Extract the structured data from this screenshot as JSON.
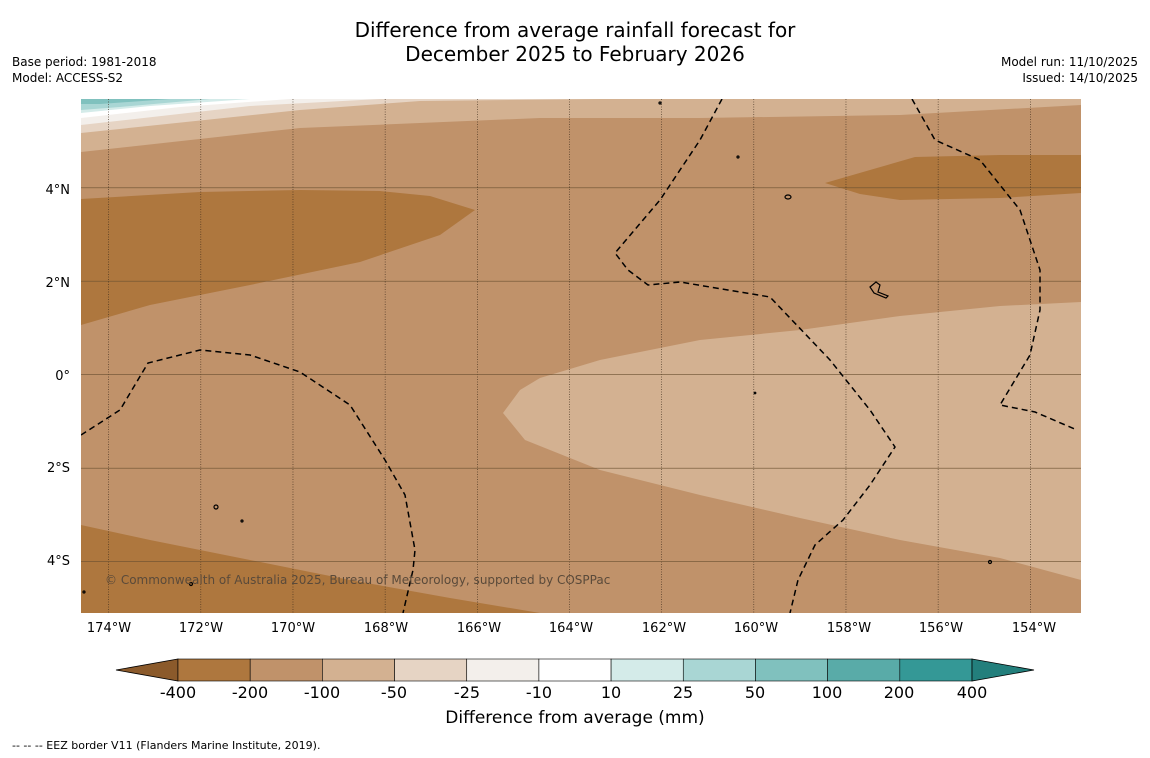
{
  "title": {
    "line1": "Difference from average rainfall forecast for",
    "line2": "December 2025 to February 2026"
  },
  "meta_left": {
    "base_period": "Base period: 1981-2018",
    "model": "Model: ACCESS-S2"
  },
  "meta_right": {
    "model_run": "Model run: 11/10/2025",
    "issued": "Issued: 14/10/2025"
  },
  "map": {
    "lat_labels": [
      "4°N",
      "2°N",
      "0°",
      "2°S",
      "4°S"
    ],
    "lon_labels": [
      "174°W",
      "172°W",
      "170°W",
      "168°W",
      "166°W",
      "164°W",
      "162°W",
      "160°W",
      "158°W",
      "156°W",
      "154°W"
    ],
    "lat_ticks_deg": [
      4,
      2,
      0,
      -2,
      -4
    ],
    "lon_ticks_deg": [
      -174,
      -172,
      -170,
      -168,
      -166,
      -164,
      -162,
      -160,
      -158,
      -156,
      -154
    ],
    "extent": {
      "lon_min": -174.6,
      "lon_max": -152.9,
      "lat_min": -5.1,
      "lat_max": 5.9
    },
    "copyright": "© Commonwealth of Australia 2025, Bureau of Meteorology, supported by COSPPac",
    "colors": {
      "c_lt400": "#8b5a2b",
      "c_n400_n200": "#ae773e",
      "c_n200_n100": "#c0926a",
      "c_n100_n50": "#d3b191",
      "c_n50_n25": "#e6d4c4",
      "c_n25_n10": "#f3efeb",
      "c_n10_10": "#ffffff",
      "c_10_25": "#d4ebe9",
      "c_25_50": "#a9d6d4",
      "c_50_100": "#80c1be",
      "c_100_200": "#59aba8",
      "c_200_400": "#349896",
      "c_gt400": "#237f7c"
    }
  },
  "colorbar": {
    "ticks": [
      "-400",
      "-200",
      "-100",
      "-50",
      "-25",
      "-10",
      "10",
      "25",
      "50",
      "100",
      "200",
      "400"
    ],
    "colors": [
      "#ae773e",
      "#c0926a",
      "#d3b191",
      "#e6d4c4",
      "#f3efeb",
      "#ffffff",
      "#d4ebe9",
      "#a9d6d4",
      "#80c1be",
      "#59aba8",
      "#349896"
    ],
    "extend_low": "#8b5a2b",
    "extend_high": "#237f7c",
    "title": "Difference from average (mm)"
  },
  "footnote": "--  --  -- EEZ border V11 (Flanders Marine Institute, 2019)."
}
